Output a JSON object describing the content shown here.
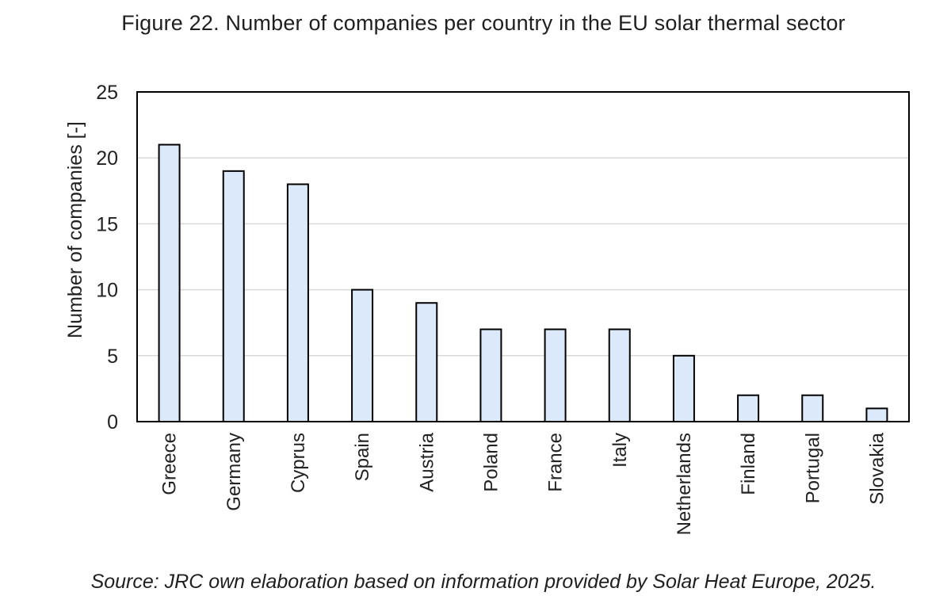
{
  "figure": {
    "title": "Figure 22. Number of companies per country in the EU solar thermal sector",
    "source": "Source: JRC own elaboration based on information provided by Solar Heat Europe, 2025."
  },
  "chart_data": {
    "type": "bar",
    "title": "Figure 22. Number of companies per country in the EU solar thermal sector",
    "xlabel": "",
    "ylabel": "Number of companies [-]",
    "categories": [
      "Greece",
      "Germany",
      "Cyprus",
      "Spain",
      "Austria",
      "Poland",
      "France",
      "Italy",
      "Netherlands",
      "Finland",
      "Portugal",
      "Slovakia"
    ],
    "values": [
      21,
      19,
      18,
      10,
      9,
      7,
      7,
      7,
      5,
      2,
      2,
      1
    ],
    "ylim": [
      0,
      25
    ],
    "yticks": [
      0,
      5,
      10,
      15,
      20,
      25
    ],
    "grid": true,
    "legend": "none",
    "colors": {
      "bar_fill": "#dbe9fb",
      "bar_stroke": "#000000",
      "gridline": "#d9d9d9",
      "frame": "#000000"
    }
  }
}
